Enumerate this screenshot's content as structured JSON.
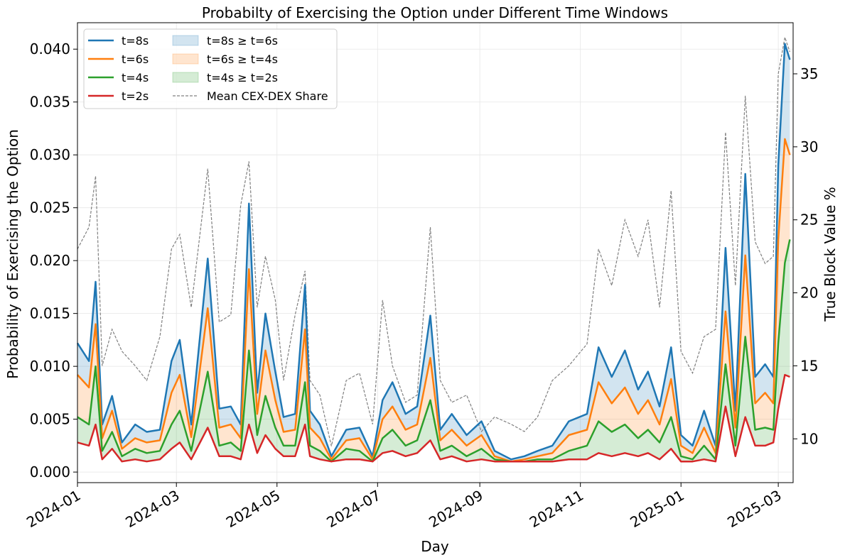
{
  "chart_data": {
    "type": "line",
    "title": "Probabilty of Exercising the Option under Different Time Windows",
    "xlabel": "Day",
    "ylabel": "Probability of Exercising the Option",
    "y2label": "True Block Value %",
    "xlim": [
      "2024-01-01",
      "2025-03-10"
    ],
    "ylim": [
      -0.001,
      0.0425
    ],
    "y2lim": [
      7,
      38.5
    ],
    "grid": true,
    "legend_position": "top-left",
    "x_ticks": [
      "2024-01",
      "2024-03",
      "2024-05",
      "2024-07",
      "2024-09",
      "2024-11",
      "2025-01",
      "2025-03"
    ],
    "y_ticks": [
      "0.000",
      "0.005",
      "0.010",
      "0.015",
      "0.020",
      "0.025",
      "0.030",
      "0.035",
      "0.040"
    ],
    "y2_ticks": [
      "10",
      "15",
      "20",
      "25",
      "30",
      "35"
    ],
    "x": [
      "2024-01-01",
      "2024-01-08",
      "2024-01-12",
      "2024-01-16",
      "2024-01-22",
      "2024-01-28",
      "2024-02-05",
      "2024-02-12",
      "2024-02-20",
      "2024-02-27",
      "2024-03-03",
      "2024-03-10",
      "2024-03-20",
      "2024-03-27",
      "2024-04-03",
      "2024-04-09",
      "2024-04-14",
      "2024-04-19",
      "2024-04-24",
      "2024-04-30",
      "2024-05-05",
      "2024-05-12",
      "2024-05-18",
      "2024-05-21",
      "2024-05-27",
      "2024-06-03",
      "2024-06-12",
      "2024-06-20",
      "2024-06-28",
      "2024-07-04",
      "2024-07-10",
      "2024-07-18",
      "2024-07-25",
      "2024-08-02",
      "2024-08-08",
      "2024-08-15",
      "2024-08-24",
      "2024-09-02",
      "2024-09-10",
      "2024-09-20",
      "2024-09-28",
      "2024-10-06",
      "2024-10-15",
      "2024-10-25",
      "2024-11-05",
      "2024-11-12",
      "2024-11-20",
      "2024-11-28",
      "2024-12-06",
      "2024-12-12",
      "2024-12-19",
      "2024-12-26",
      "2025-01-01",
      "2025-01-08",
      "2025-01-15",
      "2025-01-22",
      "2025-01-28",
      "2025-02-03",
      "2025-02-09",
      "2025-02-15",
      "2025-02-21",
      "2025-02-26",
      "2025-03-01",
      "2025-03-05",
      "2025-03-08"
    ],
    "series": [
      {
        "name": "t=8s",
        "color": "#1f77b4",
        "values": [
          0.0122,
          0.0105,
          0.018,
          0.0045,
          0.0072,
          0.0028,
          0.0045,
          0.0038,
          0.004,
          0.0105,
          0.0125,
          0.0045,
          0.0202,
          0.006,
          0.0062,
          0.0045,
          0.0254,
          0.0075,
          0.015,
          0.0095,
          0.0052,
          0.0055,
          0.0177,
          0.0058,
          0.0045,
          0.0015,
          0.004,
          0.0042,
          0.0015,
          0.0068,
          0.0085,
          0.0055,
          0.0062,
          0.0148,
          0.004,
          0.0055,
          0.0035,
          0.0048,
          0.002,
          0.0012,
          0.0015,
          0.002,
          0.0025,
          0.0048,
          0.0055,
          0.0118,
          0.009,
          0.0115,
          0.0078,
          0.0095,
          0.0062,
          0.0118,
          0.0035,
          0.0025,
          0.0058,
          0.0025,
          0.0212,
          0.0058,
          0.0282,
          0.009,
          0.0102,
          0.009,
          0.029,
          0.0405,
          0.039
        ]
      },
      {
        "name": "t=6s",
        "color": "#ff7f0e",
        "values": [
          0.0092,
          0.008,
          0.014,
          0.0032,
          0.0058,
          0.0022,
          0.0032,
          0.0028,
          0.003,
          0.0075,
          0.0092,
          0.0033,
          0.0155,
          0.0042,
          0.0045,
          0.0032,
          0.0192,
          0.0055,
          0.0115,
          0.0068,
          0.0038,
          0.004,
          0.0135,
          0.0042,
          0.0032,
          0.0012,
          0.003,
          0.0032,
          0.0012,
          0.005,
          0.0062,
          0.004,
          0.0045,
          0.0108,
          0.003,
          0.004,
          0.0025,
          0.0035,
          0.0015,
          0.001,
          0.0012,
          0.0015,
          0.0018,
          0.0035,
          0.004,
          0.0085,
          0.0065,
          0.008,
          0.0055,
          0.0068,
          0.0045,
          0.0088,
          0.0025,
          0.0018,
          0.0042,
          0.0018,
          0.0152,
          0.0042,
          0.0205,
          0.0065,
          0.0075,
          0.0065,
          0.022,
          0.0315,
          0.03
        ]
      },
      {
        "name": "t=4s",
        "color": "#2ca02c",
        "values": [
          0.0052,
          0.0045,
          0.01,
          0.002,
          0.0038,
          0.0015,
          0.0022,
          0.0018,
          0.002,
          0.0045,
          0.0058,
          0.002,
          0.0095,
          0.0025,
          0.0028,
          0.002,
          0.0115,
          0.0035,
          0.0072,
          0.0042,
          0.0025,
          0.0025,
          0.0085,
          0.0025,
          0.002,
          0.001,
          0.0022,
          0.002,
          0.001,
          0.0032,
          0.004,
          0.0025,
          0.003,
          0.0068,
          0.002,
          0.0025,
          0.0015,
          0.0022,
          0.0012,
          0.001,
          0.001,
          0.0012,
          0.0012,
          0.002,
          0.0025,
          0.0048,
          0.0038,
          0.0045,
          0.0032,
          0.004,
          0.0028,
          0.0052,
          0.0015,
          0.0012,
          0.0025,
          0.0012,
          0.0102,
          0.0025,
          0.0128,
          0.004,
          0.0042,
          0.004,
          0.0122,
          0.0198,
          0.022
        ]
      },
      {
        "name": "t=2s",
        "color": "#d62728",
        "values": [
          0.0028,
          0.0025,
          0.0045,
          0.0012,
          0.0022,
          0.001,
          0.0012,
          0.001,
          0.0012,
          0.0022,
          0.0028,
          0.0012,
          0.0042,
          0.0015,
          0.0015,
          0.0012,
          0.0045,
          0.0018,
          0.0035,
          0.0022,
          0.0015,
          0.0015,
          0.0045,
          0.0015,
          0.0012,
          0.001,
          0.0012,
          0.0012,
          0.001,
          0.0018,
          0.002,
          0.0015,
          0.0018,
          0.003,
          0.0012,
          0.0015,
          0.001,
          0.0012,
          0.001,
          0.001,
          0.001,
          0.001,
          0.001,
          0.0012,
          0.0012,
          0.0018,
          0.0015,
          0.0018,
          0.0015,
          0.0018,
          0.0012,
          0.0022,
          0.001,
          0.001,
          0.0012,
          0.001,
          0.0062,
          0.0015,
          0.0052,
          0.0025,
          0.0025,
          0.0028,
          0.006,
          0.0092,
          0.009
        ]
      }
    ],
    "secondary_series": {
      "name": "Mean CEX-DEX Share",
      "color": "#808080",
      "style": "dashed",
      "values": [
        23,
        24.5,
        28,
        15,
        17.5,
        16,
        15,
        14,
        17,
        23,
        24,
        19,
        28.5,
        18,
        18.5,
        26,
        29,
        19,
        22.5,
        19.5,
        14,
        18.5,
        21.5,
        14,
        13,
        9.5,
        14,
        14.5,
        11,
        19.5,
        15,
        12.5,
        13,
        24.5,
        14,
        12.5,
        13,
        10.5,
        11.5,
        11,
        10.5,
        11.5,
        14,
        15,
        16.5,
        23,
        20.5,
        25,
        22.5,
        25,
        19,
        27,
        16,
        14.5,
        17,
        17.5,
        31,
        20.5,
        33.5,
        23.5,
        22,
        22.5,
        35,
        37.5,
        36.5
      ]
    },
    "fills": [
      {
        "name": "t=8s ≥ t=6s",
        "upper": "t=8s",
        "lower": "t=6s",
        "color": "#1f77b4"
      },
      {
        "name": "t=6s ≥ t=4s",
        "upper": "t=6s",
        "lower": "t=4s",
        "color": "#ff7f0e"
      },
      {
        "name": "t=4s ≥ t=2s",
        "upper": "t=4s",
        "lower": "t=2s",
        "color": "#2ca02c"
      }
    ]
  }
}
